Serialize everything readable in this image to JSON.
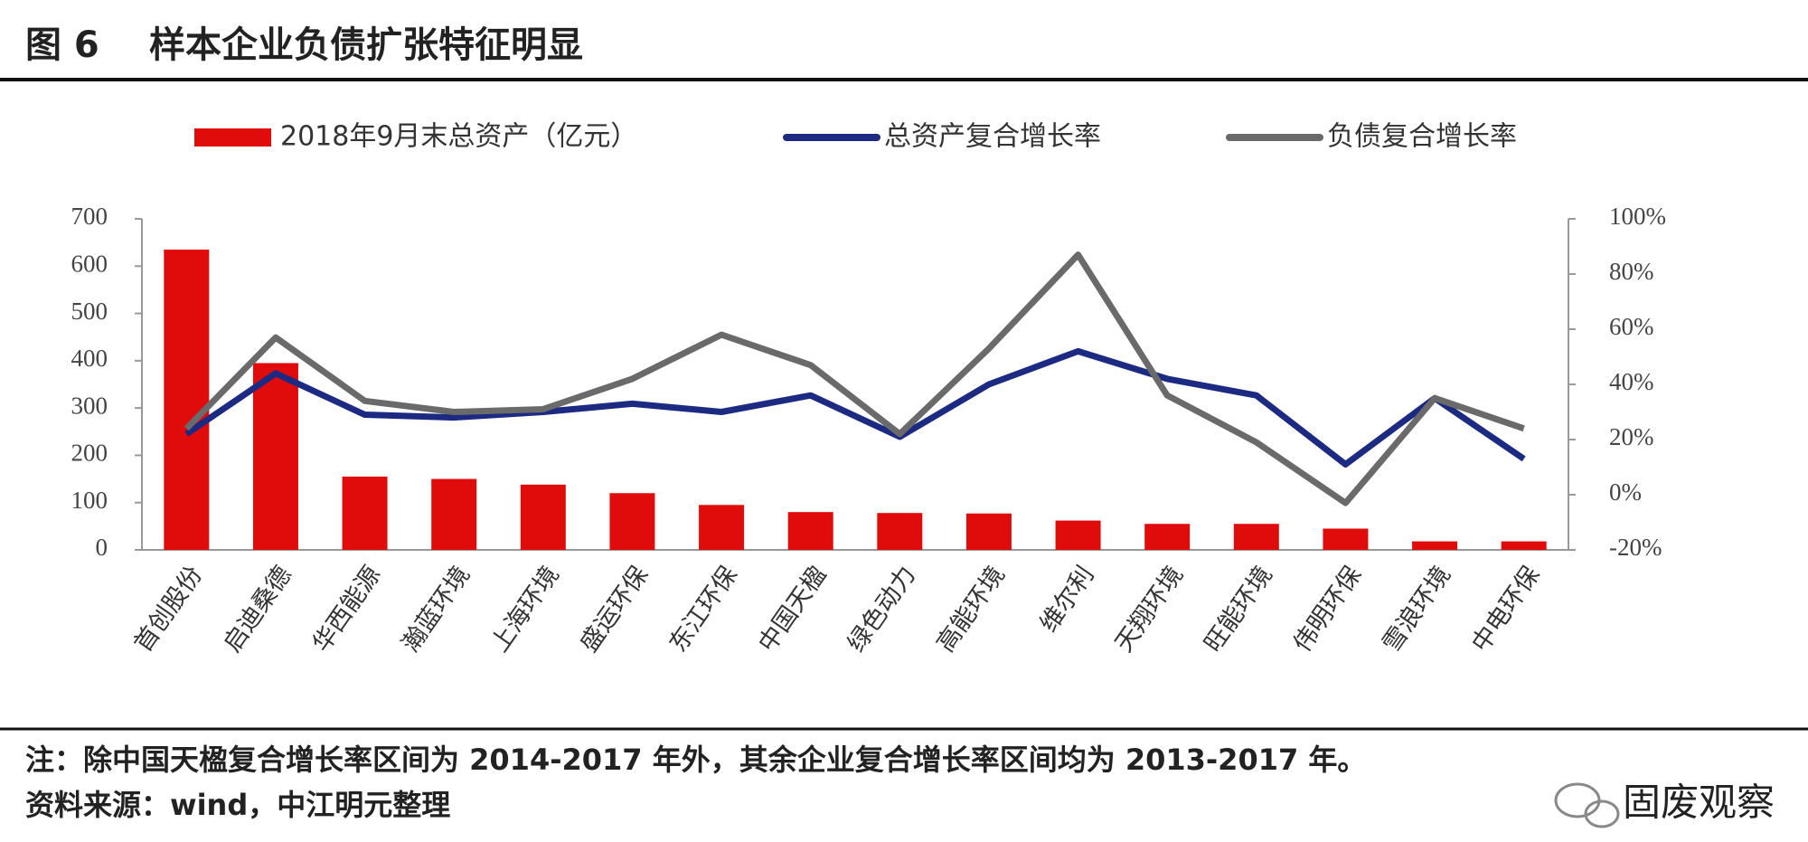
{
  "chart_data": {
    "type": "bar-line",
    "figure_label": "图 6",
    "title": "样本企业负债扩张特征明显",
    "categories": [
      "首创股份",
      "启迪桑德",
      "华西能源",
      "瀚蓝环境",
      "上海环境",
      "盛运环保",
      "东江环保",
      "中国天楹",
      "绿色动力",
      "高能环境",
      "维尔利",
      "天翔环境",
      "旺能环境",
      "伟明环保",
      "雪浪环境",
      "中电环保"
    ],
    "series": [
      {
        "name": "2018年9月末总资产（亿元）",
        "type": "bar",
        "color": "#e00b0b",
        "values": [
          635,
          395,
          155,
          150,
          138,
          120,
          95,
          80,
          78,
          77,
          62,
          55,
          55,
          45,
          18,
          18
        ]
      },
      {
        "name": "总资产复合增长率",
        "type": "line",
        "axis": "y2",
        "color": "#1c2a82",
        "values": [
          22,
          44,
          29,
          28,
          30,
          33,
          30,
          36,
          21,
          40,
          52,
          42,
          36,
          11,
          35,
          13
        ]
      },
      {
        "name": "负债复合增长率",
        "type": "line",
        "axis": "y2",
        "color": "#6a6a6a",
        "values": [
          24,
          57,
          34,
          30,
          31,
          42,
          58,
          47,
          22,
          53,
          87,
          36,
          19,
          -3,
          35,
          24
        ]
      }
    ],
    "ylim": [
      0,
      700
    ],
    "yticks": [
      0,
      100,
      200,
      300,
      400,
      500,
      600,
      700
    ],
    "y2lim": [
      -20,
      100
    ],
    "y2ticks": [
      {
        "value": -20,
        "label": "-20%"
      },
      {
        "value": 0,
        "label": "0%"
      },
      {
        "value": 20,
        "label": "20%"
      },
      {
        "value": 40,
        "label": "40%"
      },
      {
        "value": 60,
        "label": "60%"
      },
      {
        "value": 80,
        "label": "80%"
      },
      {
        "value": 100,
        "label": "100%"
      }
    ],
    "note": "注：除中国天楹复合增长率区间为 2014-2017 年外，其余企业复合增长率区间均为 2013-2017 年。",
    "source": "资料来源：wind，中江明元整理",
    "watermark": "固废观察"
  }
}
